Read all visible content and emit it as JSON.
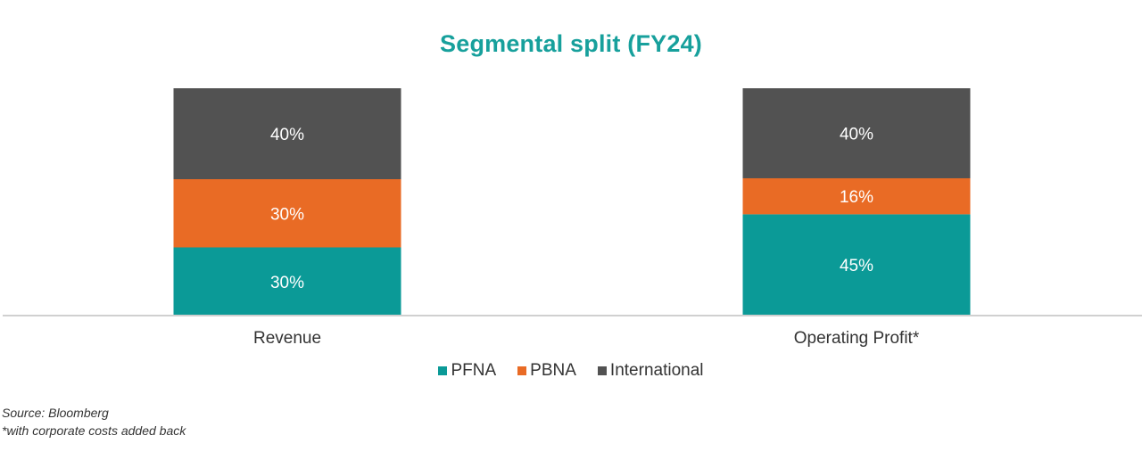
{
  "chart_data": {
    "type": "bar",
    "stacked": true,
    "title": "Segmental split (FY24)",
    "categories": [
      "Revenue",
      "Operating Profit*"
    ],
    "series": [
      {
        "name": "PFNA",
        "color": "#0b9a97",
        "values": [
          30,
          45
        ],
        "labels": [
          "30%",
          "45%"
        ]
      },
      {
        "name": "PBNA",
        "color": "#e96b25",
        "values": [
          30,
          16
        ],
        "labels": [
          "30%",
          "16%"
        ]
      },
      {
        "name": "International",
        "color": "#525252",
        "values": [
          40,
          40
        ],
        "labels": [
          "40%",
          "40%"
        ]
      }
    ],
    "legend_position": "bottom",
    "grid": false
  },
  "notes": {
    "source": "Source: Bloomberg",
    "footnote": "*with corporate costs added back"
  }
}
